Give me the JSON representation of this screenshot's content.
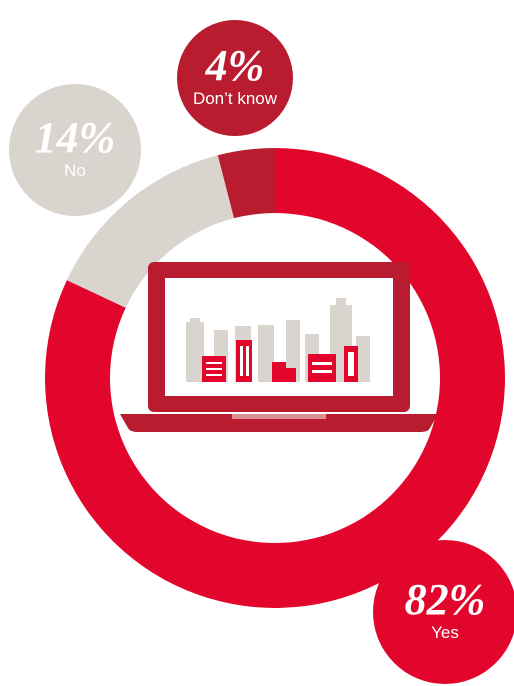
{
  "chart_data": {
    "type": "pie",
    "categories": [
      "Yes",
      "No",
      "Don’t know"
    ],
    "values": [
      82,
      14,
      4
    ],
    "value_labels": [
      "82%",
      "14%",
      "4%"
    ],
    "colors": [
      "#e3062c",
      "#d9d4ce",
      "#b81c2e"
    ],
    "donut": true
  }
}
